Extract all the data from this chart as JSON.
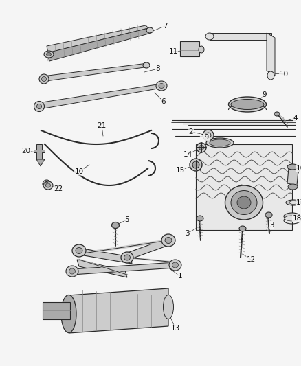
{
  "background_color": "#f5f5f5",
  "line_color": "#2a2a2a",
  "fig_width": 4.38,
  "fig_height": 5.33,
  "dpi": 100
}
